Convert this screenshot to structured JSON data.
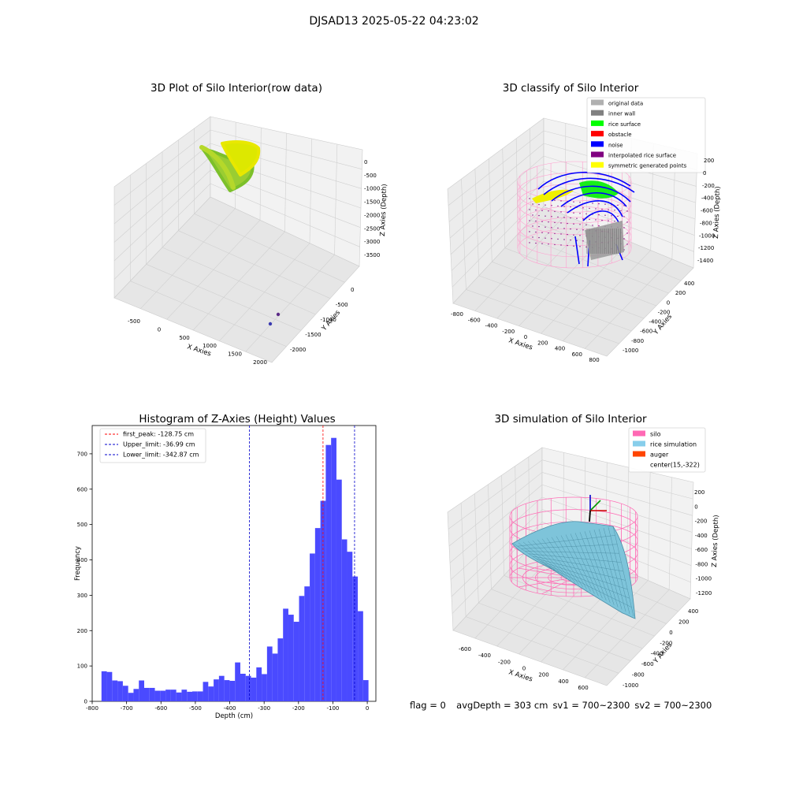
{
  "figure": {
    "suptitle": "DJSAD13 2025-05-22 04:23:02"
  },
  "status": {
    "flag": "flag = 0",
    "avg_depth": "avgDepth = 303 cm",
    "sv1": "sv1 = 700~2300",
    "sv2": "sv2 = 700~2300"
  },
  "colors": {
    "histogram_bar": "#4a4aff",
    "peak_line": "#ff0000",
    "limit_line": "#0000cc",
    "raw_points_green": "#9acd32",
    "raw_points_yellow": "#e8e800",
    "silo_pink": "#ff69b4",
    "rice_blue": "#87ceeb",
    "auger_orange": "#ff4500"
  },
  "panels": {
    "raw": {
      "title": "3D Plot of Silo Interior(row data)",
      "xlabel": "X Axies",
      "ylabel": "Y Axies",
      "zlabel": "Z Axies (Depth)",
      "x_ticks": [
        "-500",
        "0",
        "500",
        "1000",
        "1500",
        "2000"
      ],
      "y_ticks": [
        "0",
        "-500",
        "-1000",
        "-1500",
        "-2000"
      ],
      "z_ticks": [
        "0",
        "-500",
        "-1000",
        "-1500",
        "-2000",
        "-2500",
        "-3000",
        "-3500"
      ]
    },
    "classify": {
      "title": "3D classify of Silo Interior",
      "xlabel": "X Axies",
      "ylabel": "Y Axies",
      "zlabel": "Z Axies (Depth)",
      "x_ticks": [
        "-800",
        "-600",
        "-400",
        "-200",
        "0",
        "200",
        "400",
        "600",
        "800"
      ],
      "y_ticks": [
        "400",
        "200",
        "0",
        "-200",
        "-400",
        "-600",
        "-800",
        "-1000"
      ],
      "z_ticks": [
        "200",
        "0",
        "-200",
        "-400",
        "-600",
        "-800",
        "-1000",
        "-1200",
        "-1400"
      ],
      "legend": [
        {
          "label": "original data",
          "color": "#b0b0b0"
        },
        {
          "label": "inner wall",
          "color": "#808080"
        },
        {
          "label": "rice surface",
          "color": "#00ff00"
        },
        {
          "label": "obstacle",
          "color": "#ff0000"
        },
        {
          "label": "noise",
          "color": "#0000ff"
        },
        {
          "label": "interpolated rice surface",
          "color": "#800080"
        },
        {
          "label": "symmetric generated points",
          "color": "#ffff00"
        }
      ]
    },
    "simulation": {
      "title": "3D simulation of Silo Interior",
      "xlabel": "X Axies",
      "ylabel": "Y Axies",
      "zlabel": "Z Axies (Depth)",
      "x_ticks": [
        "-600",
        "-400",
        "-200",
        "0",
        "200",
        "400",
        "600"
      ],
      "y_ticks": [
        "400",
        "200",
        "0",
        "-200",
        "-400",
        "-600",
        "-800",
        "-1000"
      ],
      "z_ticks": [
        "200",
        "0",
        "-200",
        "-400",
        "-600",
        "-800",
        "-1000",
        "-1200"
      ],
      "legend": [
        {
          "label": "silo",
          "color": "#ff69b4"
        },
        {
          "label": "rice simulation",
          "color": "#87ceeb"
        },
        {
          "label": "auger",
          "color": "#ff4500"
        },
        {
          "label": "center(15,-322)",
          "color": ""
        }
      ]
    }
  },
  "chart_data": {
    "type": "bar",
    "title": "Histogram of Z-Axies (Height) Values",
    "xlabel": "Depth (cm)",
    "ylabel": "Frequency",
    "xlim": [
      -800,
      25
    ],
    "ylim": [
      0,
      780
    ],
    "x_ticks": [
      -800,
      -700,
      -600,
      -500,
      -400,
      -300,
      -200,
      -100,
      0
    ],
    "y_ticks": [
      0,
      100,
      200,
      300,
      400,
      500,
      600,
      700
    ],
    "bin_start": -773,
    "bin_width": 15.53,
    "values": [
      85,
      83,
      59,
      57,
      44,
      24,
      35,
      59,
      38,
      38,
      30,
      30,
      33,
      33,
      25,
      33,
      27,
      28,
      28,
      55,
      42,
      62,
      72,
      60,
      58,
      110,
      78,
      72,
      67,
      96,
      77,
      155,
      135,
      178,
      262,
      245,
      225,
      298,
      325,
      418,
      490,
      567,
      725,
      745,
      627,
      458,
      423,
      353,
      255,
      60
    ],
    "lines": [
      {
        "label": "first_peak: -128.75 cm",
        "x": -128.75,
        "color": "#ff0000"
      },
      {
        "label": "Upper_limit: -36.99 cm",
        "x": -36.99,
        "color": "#0000cc"
      },
      {
        "label": "Lower_limit: -342.87 cm",
        "x": -342.87,
        "color": "#0000cc"
      }
    ],
    "legend_position": "top-left"
  }
}
